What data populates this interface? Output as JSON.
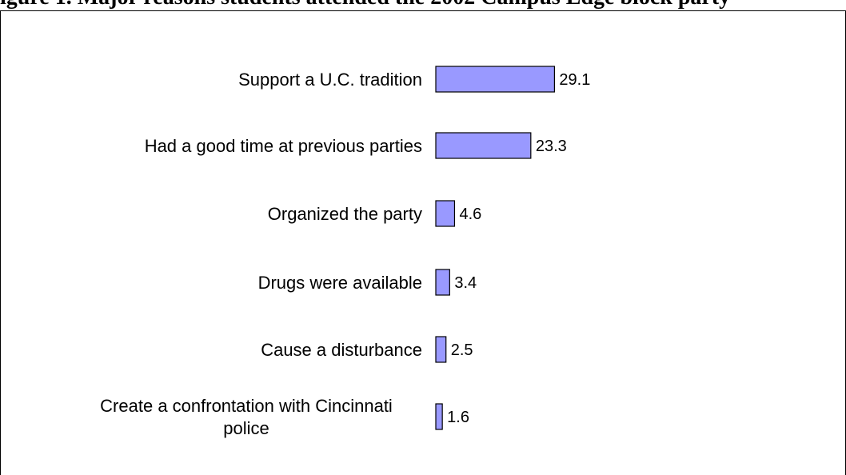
{
  "header": {
    "title_fragment": "igure 1.  Major reasons students attended the 2002 Campus Edge block party"
  },
  "colors": {
    "bar_fill": "#9999ff",
    "bar_stroke": "#000000"
  },
  "chart_data": {
    "type": "bar",
    "orientation": "horizontal",
    "categories": [
      "Support a U.C. tradition",
      "Had a good time at previous parties",
      "Organized the party",
      "Drugs were available",
      "Cause a disturbance",
      "Create a confrontation with Cincinnati police"
    ],
    "category_lines": [
      [
        "Support a U.C. tradition"
      ],
      [
        "Had a good time at previous parties"
      ],
      [
        "Organized the party"
      ],
      [
        "Drugs were available"
      ],
      [
        "Cause a disturbance"
      ],
      [
        "Create a confrontation with Cincinnati",
        "police"
      ]
    ],
    "values": [
      29.1,
      23.3,
      4.6,
      3.4,
      2.5,
      1.6
    ],
    "value_labels": [
      "29.1",
      "23.3",
      "4.6",
      "3.4",
      "2.5",
      "1.6"
    ],
    "title": "",
    "xlabel": "",
    "ylabel": "",
    "grid": false,
    "legend": "none"
  }
}
